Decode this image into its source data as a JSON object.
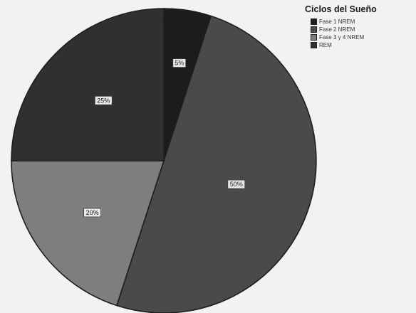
{
  "chart_data": {
    "type": "pie",
    "title": "Ciclos del Sueño",
    "legend_position": "top-right",
    "series": [
      {
        "name": "Fase 1 NREM",
        "value": 5,
        "label": "5%",
        "color": "#1c1c1c"
      },
      {
        "name": "Fase 2 NREM",
        "value": 50,
        "label": "50%",
        "color": "#4a4a4a"
      },
      {
        "name": "Fase 3 y 4 NREM",
        "value": 20,
        "label": "20%",
        "color": "#7e7e7e"
      },
      {
        "name": "REM",
        "value": 25,
        "label": "25%",
        "color": "#303030"
      }
    ]
  }
}
